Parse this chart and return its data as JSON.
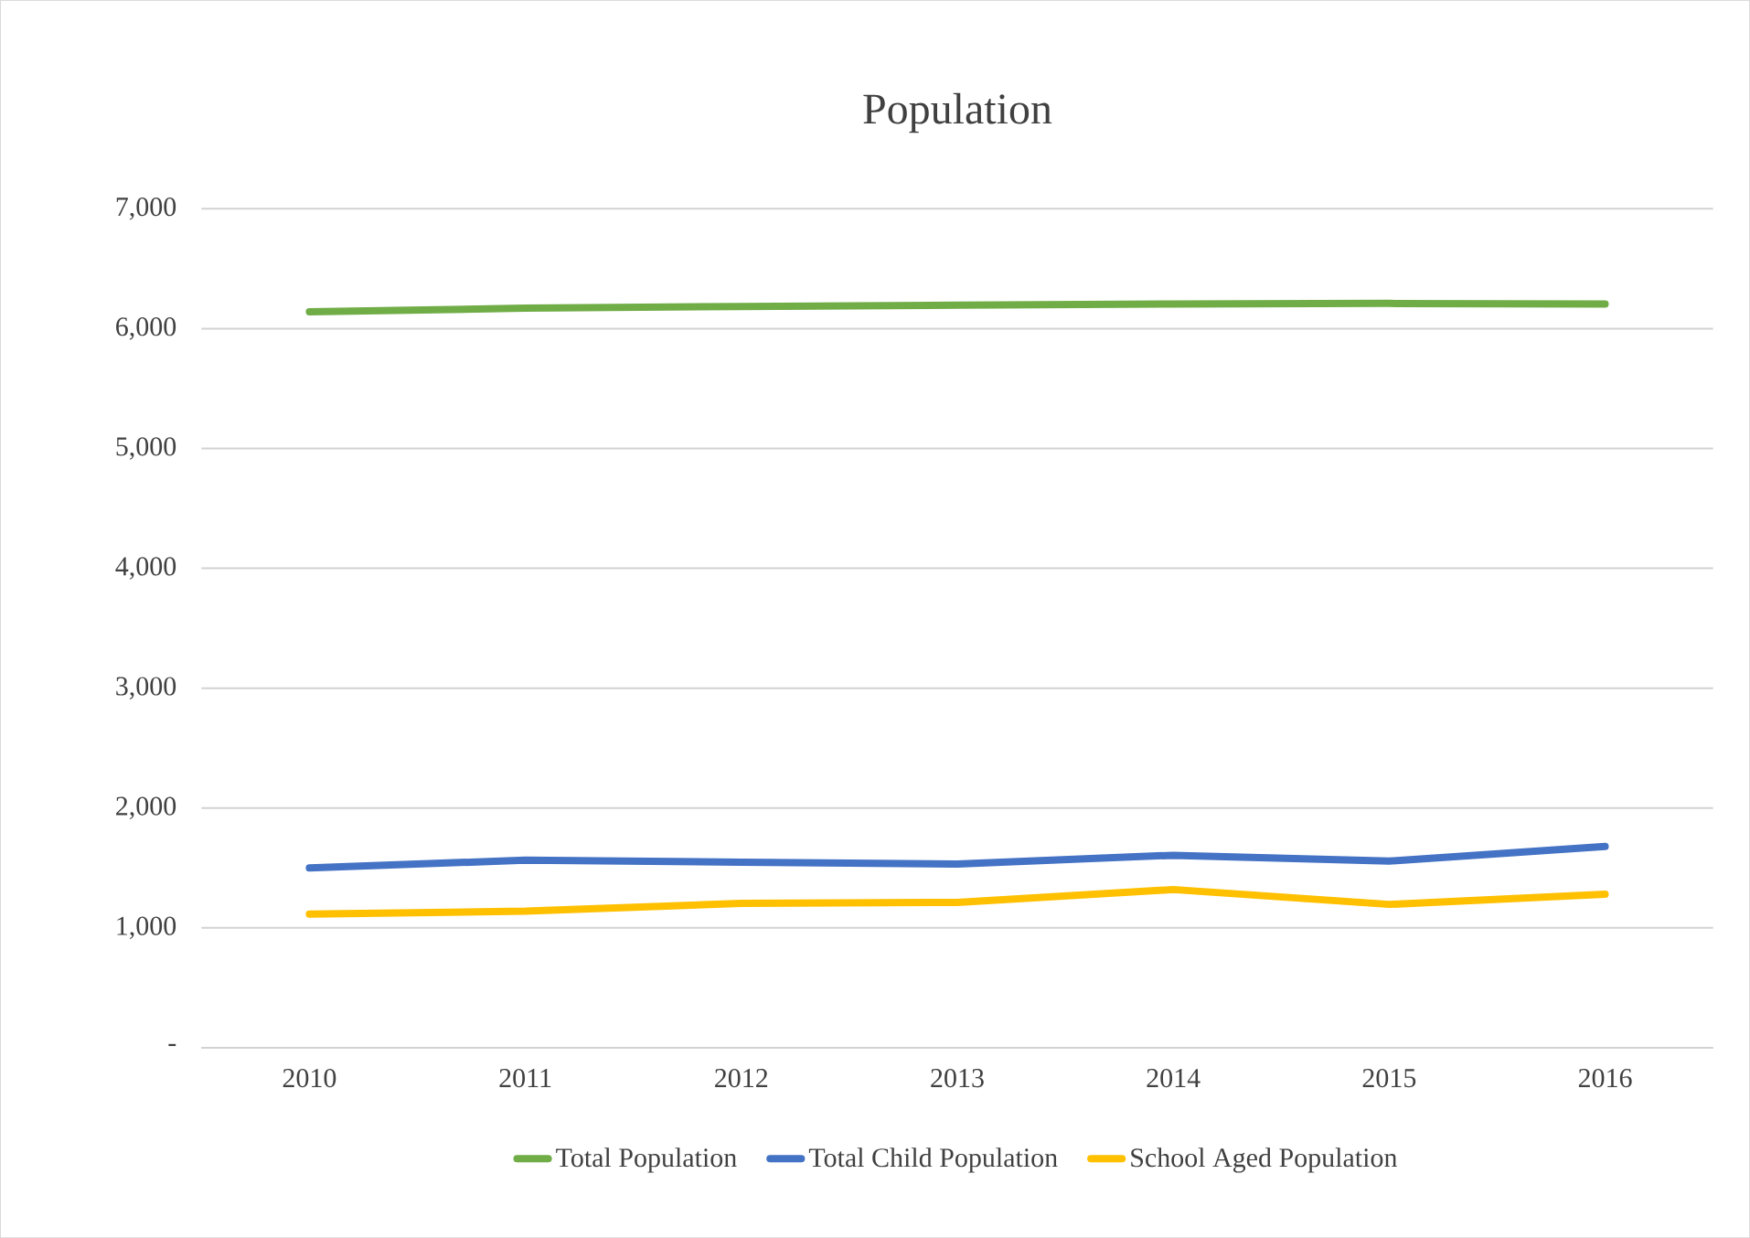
{
  "chart_data": {
    "type": "line",
    "title": "Population",
    "categories": [
      "2010",
      "2011",
      "2012",
      "2013",
      "2014",
      "2015",
      "2016"
    ],
    "series": [
      {
        "name": "Total Population",
        "color": "#70ad47",
        "values": [
          6140,
          6170,
          6185,
          6195,
          6205,
          6210,
          6205
        ]
      },
      {
        "name": "Total Child Population",
        "color": "#4472c4",
        "values": [
          1500,
          1565,
          1548,
          1533,
          1606,
          1557,
          1680
        ]
      },
      {
        "name": "School Aged Population",
        "color": "#ffc000",
        "values": [
          1115,
          1139,
          1205,
          1213,
          1320,
          1196,
          1280
        ]
      }
    ],
    "ylim": [
      0,
      7000
    ],
    "yticks": [
      {
        "value": 0,
        "label": "-"
      },
      {
        "value": 1000,
        "label": "1,000"
      },
      {
        "value": 2000,
        "label": "2,000"
      },
      {
        "value": 3000,
        "label": "3,000"
      },
      {
        "value": 4000,
        "label": "4,000"
      },
      {
        "value": 5000,
        "label": "5,000"
      },
      {
        "value": 6000,
        "label": "6,000"
      },
      {
        "value": 7000,
        "label": "7,000"
      }
    ],
    "grid": "y",
    "legend": "bottom",
    "marker": "none",
    "line_style": "solid"
  }
}
